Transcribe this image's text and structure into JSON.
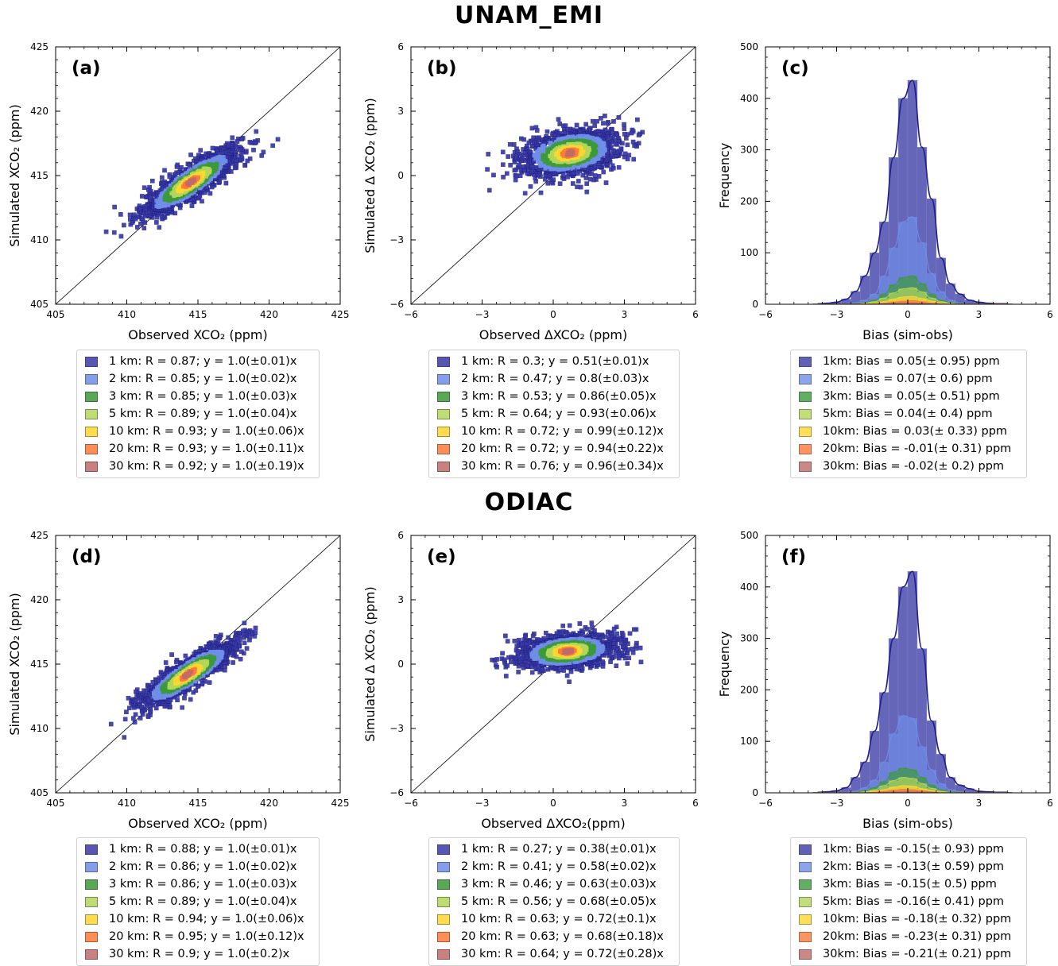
{
  "titles": {
    "top": "UNAM_EMI",
    "bottom": "ODIAC"
  },
  "colors": {
    "res_1": "#3a3aa6",
    "res_2": "#6f8ee8",
    "res_3": "#3c9a3c",
    "res_5": "#b3d65a",
    "res_10": "#ffd731",
    "res_20": "#ff7a3a",
    "res_30": "#c06a6a"
  },
  "chart_data": [
    {
      "type": "scatter",
      "label": "(a)",
      "xlabel": "Observed XCO₂ (ppm)",
      "ylabel": "Simulated XCO₂ (ppm)",
      "xlim": [
        405,
        425
      ],
      "ylim": [
        405,
        425
      ],
      "xticks": [
        "405",
        "410",
        "415",
        "420",
        "425"
      ],
      "yticks": [
        "405",
        "410",
        "415",
        "420",
        "425"
      ],
      "one_to_one_line": true,
      "cloud": {
        "cx": 414.5,
        "cy": 414.5,
        "sx": 1.7,
        "sy": 1.35,
        "rho": 0.87
      },
      "legend": [
        "1 km: R = 0.87; y = 1.0(±0.01)x",
        "2 km: R = 0.85; y = 1.0(±0.02)x",
        "3 km: R = 0.85; y = 1.0(±0.03)x",
        "5 km: R = 0.89; y = 1.0(±0.04)x",
        "10 km: R = 0.93; y = 1.0(±0.06)x",
        "20 km: R = 0.93; y = 1.0(±0.11)x",
        "30 km: R = 0.92; y = 1.0(±0.19)x"
      ]
    },
    {
      "type": "scatter",
      "label": "(b)",
      "xlabel": "Observed ΔXCO₂ (ppm)",
      "ylabel": "Simulated Δ XCO₂ (ppm)",
      "xlim": [
        -6,
        6
      ],
      "ylim": [
        -6,
        6
      ],
      "xticks": [
        "−6",
        "−3",
        "0",
        "3",
        "6"
      ],
      "yticks": [
        "−6",
        "−3",
        "0",
        "3",
        "6"
      ],
      "one_to_one_line": true,
      "cloud": {
        "cx": 0.7,
        "cy": 1.05,
        "sx": 1.05,
        "sy": 0.55,
        "rho": 0.3
      },
      "legend": [
        "1 km: R = 0.3; y = 0.51(±0.01)x",
        "2 km: R = 0.47; y = 0.8(±0.03)x",
        "3 km: R = 0.53; y = 0.86(±0.05)x",
        "5 km: R = 0.64; y = 0.93(±0.06)x",
        "10 km: R = 0.72; y = 0.99(±0.12)x",
        "20 km: R = 0.72; y = 0.94(±0.22)x",
        "30 km: R = 0.76; y = 0.96(±0.34)x"
      ]
    },
    {
      "type": "bar",
      "subtype": "histogram",
      "label": "(c)",
      "xlabel": "Bias (sim-obs)",
      "ylabel": "Frequency",
      "xlim": [
        -6,
        6
      ],
      "ylim": [
        0,
        500
      ],
      "xticks": [
        "−6",
        "−3",
        "0",
        "3",
        "6"
      ],
      "yticks": [
        "0",
        "100",
        "200",
        "300",
        "400",
        "500"
      ],
      "bin_edges": [
        -4.0,
        -3.6,
        -3.2,
        -2.8,
        -2.4,
        -2.0,
        -1.6,
        -1.2,
        -0.8,
        -0.4,
        0.0,
        0.4,
        0.8,
        1.2,
        1.6,
        2.0,
        2.4,
        2.8,
        3.2,
        3.6,
        4.0,
        4.4
      ],
      "series": [
        {
          "key": "res_1",
          "name": "1km",
          "values": [
            1,
            2,
            4,
            10,
            25,
            55,
            100,
            160,
            285,
            400,
            435,
            305,
            205,
            90,
            40,
            20,
            8,
            4,
            2,
            1,
            1
          ],
          "kde": true
        },
        {
          "key": "res_2",
          "values": [
            0,
            0,
            0,
            1,
            3,
            8,
            20,
            55,
            110,
            160,
            170,
            120,
            60,
            25,
            8,
            2,
            1,
            0,
            0,
            0,
            0
          ]
        },
        {
          "key": "res_3",
          "values": [
            0,
            0,
            0,
            0,
            1,
            3,
            8,
            20,
            38,
            52,
            55,
            40,
            20,
            8,
            3,
            1,
            0,
            0,
            0,
            0,
            0
          ]
        },
        {
          "key": "res_5",
          "values": [
            0,
            0,
            0,
            0,
            0,
            2,
            5,
            12,
            22,
            30,
            32,
            24,
            12,
            5,
            2,
            0,
            0,
            0,
            0,
            0,
            0
          ]
        },
        {
          "key": "res_10",
          "values": [
            0,
            0,
            0,
            0,
            0,
            1,
            2,
            5,
            10,
            14,
            15,
            11,
            6,
            2,
            1,
            0,
            0,
            0,
            0,
            0,
            0
          ]
        },
        {
          "key": "res_20",
          "values": [
            0,
            0,
            0,
            0,
            0,
            0,
            1,
            2,
            4,
            6,
            7,
            5,
            2,
            1,
            0,
            0,
            0,
            0,
            0,
            0,
            0
          ]
        },
        {
          "key": "res_30",
          "values": [
            0,
            0,
            0,
            0,
            0,
            0,
            0,
            1,
            2,
            3,
            3,
            2,
            1,
            0,
            0,
            0,
            0,
            0,
            0,
            0,
            0
          ]
        }
      ],
      "legend": [
        "1km: Bias = 0.05(± 0.95) ppm",
        "2km: Bias = 0.07(± 0.6) ppm",
        "3km: Bias = 0.05(± 0.51) ppm",
        "5km: Bias = 0.04(± 0.4) ppm",
        "10km: Bias = 0.03(± 0.33) ppm",
        "20km: Bias = -0.01(± 0.31) ppm",
        "30km: Bias = -0.02(± 0.2) ppm"
      ]
    },
    {
      "type": "scatter",
      "label": "(d)",
      "xlabel": "Observed XCO₂ (ppm)",
      "ylabel": "Simulated XCO₂ (ppm)",
      "xlim": [
        405,
        425
      ],
      "ylim": [
        405,
        425
      ],
      "xticks": [
        "405",
        "410",
        "415",
        "420",
        "425"
      ],
      "yticks": [
        "405",
        "410",
        "415",
        "420",
        "425"
      ],
      "one_to_one_line": true,
      "cloud": {
        "cx": 414.3,
        "cy": 414.2,
        "sx": 1.7,
        "sy": 1.3,
        "rho": 0.88
      },
      "legend": [
        "1 km: R = 0.88; y = 1.0(±0.01)x",
        "2 km: R = 0.86; y = 1.0(±0.02)x",
        "3 km: R = 0.86; y = 1.0(±0.03)x",
        "5 km: R = 0.89; y = 1.0(±0.04)x",
        "10 km: R = 0.94; y = 1.0(±0.06)x",
        "20 km: R = 0.95; y = 1.0(±0.12)x",
        "30 km: R = 0.9; y = 1.0(±0.2)x"
      ]
    },
    {
      "type": "scatter",
      "label": "(e)",
      "xlabel": "Observed ΔXCO₂(ppm)",
      "ylabel": "Simulated Δ XCO₂ (ppm)",
      "xlim": [
        -6,
        6
      ],
      "ylim": [
        -6,
        6
      ],
      "xticks": [
        "−6",
        "−3",
        "0",
        "3",
        "6"
      ],
      "yticks": [
        "−6",
        "−3",
        "0",
        "3",
        "6"
      ],
      "one_to_one_line": true,
      "cloud": {
        "cx": 0.6,
        "cy": 0.6,
        "sx": 1.05,
        "sy": 0.4,
        "rho": 0.27
      },
      "legend": [
        "1 km: R = 0.27; y = 0.38(±0.01)x",
        "2 km: R = 0.41; y = 0.58(±0.02)x",
        "3 km: R = 0.46; y = 0.63(±0.03)x",
        "5 km: R = 0.56; y = 0.68(±0.05)x",
        "10 km: R = 0.63; y = 0.72(±0.1)x",
        "20 km: R = 0.63; y = 0.68(±0.18)x",
        "30 km: R = 0.64; y = 0.72(±0.28)x"
      ]
    },
    {
      "type": "bar",
      "subtype": "histogram",
      "label": "(f)",
      "xlabel": "Bias (sim-obs)",
      "ylabel": "Frequency",
      "xlim": [
        -6,
        6
      ],
      "ylim": [
        0,
        500
      ],
      "xticks": [
        "−6",
        "−3",
        "0",
        "3",
        "6"
      ],
      "yticks": [
        "0",
        "100",
        "200",
        "300",
        "400",
        "500"
      ],
      "bin_edges": [
        -4.0,
        -3.6,
        -3.2,
        -2.8,
        -2.4,
        -2.0,
        -1.6,
        -1.2,
        -0.8,
        -0.4,
        0.0,
        0.4,
        0.8,
        1.2,
        1.6,
        2.0,
        2.4,
        2.8,
        3.2,
        3.6,
        4.0,
        4.4
      ],
      "series": [
        {
          "key": "res_1",
          "name": "1km",
          "values": [
            1,
            2,
            4,
            10,
            30,
            60,
            120,
            195,
            300,
            400,
            430,
            280,
            140,
            75,
            30,
            15,
            8,
            3,
            2,
            1,
            1
          ],
          "kde": true
        },
        {
          "key": "res_2",
          "values": [
            0,
            0,
            0,
            1,
            3,
            10,
            25,
            60,
            115,
            150,
            145,
            90,
            45,
            18,
            6,
            2,
            1,
            0,
            0,
            0,
            0
          ]
        },
        {
          "key": "res_3",
          "values": [
            0,
            0,
            0,
            0,
            1,
            4,
            10,
            22,
            40,
            48,
            45,
            30,
            15,
            6,
            2,
            1,
            0,
            0,
            0,
            0,
            0
          ]
        },
        {
          "key": "res_5",
          "values": [
            0,
            0,
            0,
            0,
            0,
            2,
            6,
            14,
            24,
            30,
            28,
            18,
            9,
            3,
            1,
            0,
            0,
            0,
            0,
            0,
            0
          ]
        },
        {
          "key": "res_10",
          "values": [
            0,
            0,
            0,
            0,
            0,
            1,
            3,
            6,
            11,
            14,
            13,
            8,
            4,
            1,
            0,
            0,
            0,
            0,
            0,
            0,
            0
          ]
        },
        {
          "key": "res_20",
          "values": [
            0,
            0,
            0,
            0,
            0,
            0,
            1,
            3,
            5,
            7,
            6,
            4,
            2,
            0,
            0,
            0,
            0,
            0,
            0,
            0,
            0
          ]
        },
        {
          "key": "res_30",
          "values": [
            0,
            0,
            0,
            0,
            0,
            0,
            0,
            1,
            2,
            3,
            3,
            2,
            1,
            0,
            0,
            0,
            0,
            0,
            0,
            0,
            0
          ]
        }
      ],
      "legend": [
        "1km: Bias = -0.15(± 0.93) ppm",
        "2km: Bias = -0.13(± 0.59) ppm",
        "3km: Bias = -0.15(± 0.5) ppm",
        "5km: Bias = -0.16(± 0.41) ppm",
        "10km: Bias = -0.18(± 0.32) ppm",
        "20km: Bias = -0.23(± 0.31) ppm",
        "30km: Bias = -0.21(± 0.21) ppm"
      ]
    }
  ]
}
